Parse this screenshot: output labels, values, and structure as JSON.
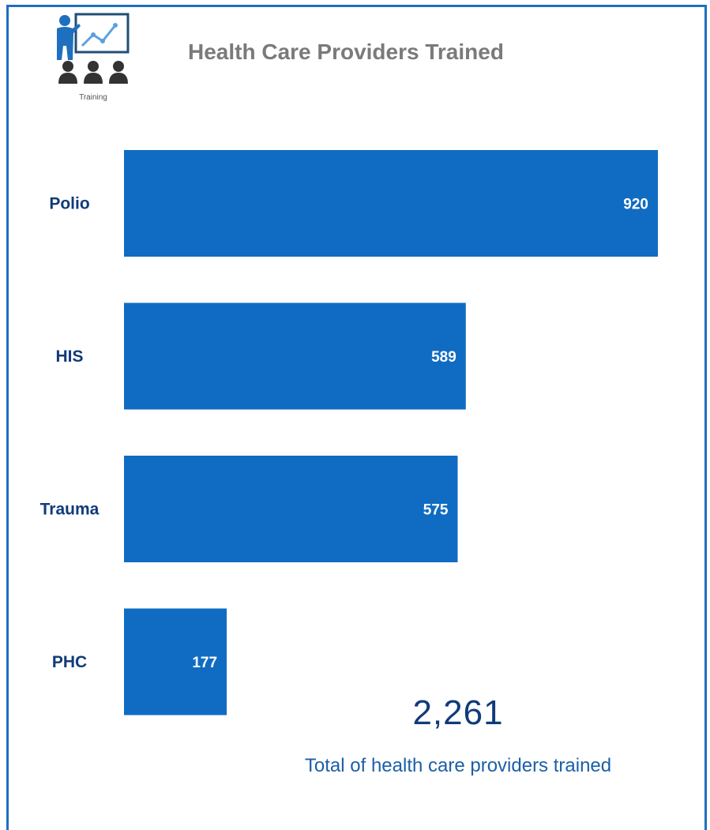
{
  "header": {
    "title": "Health Care Providers Trained",
    "logo_caption": "Training",
    "logo_icon": "training-presentation-icon"
  },
  "colors": {
    "bar": "#0f6cc2",
    "category_label": "#103a7a",
    "title": "#7a7a7a",
    "frame": "#1f6fbf"
  },
  "chart_data": {
    "type": "bar",
    "orientation": "horizontal",
    "title": "Health Care Providers Trained",
    "categories": [
      "Polio",
      "HIS",
      "Trauma",
      "PHC"
    ],
    "values": [
      920,
      589,
      575,
      177
    ],
    "data_labels": [
      "920",
      "589",
      "575",
      "177"
    ],
    "xlim": [
      0,
      920
    ],
    "grid": false,
    "legend": "none"
  },
  "summary": {
    "total_value": "2,261",
    "total_caption": "Total of health care providers trained"
  }
}
